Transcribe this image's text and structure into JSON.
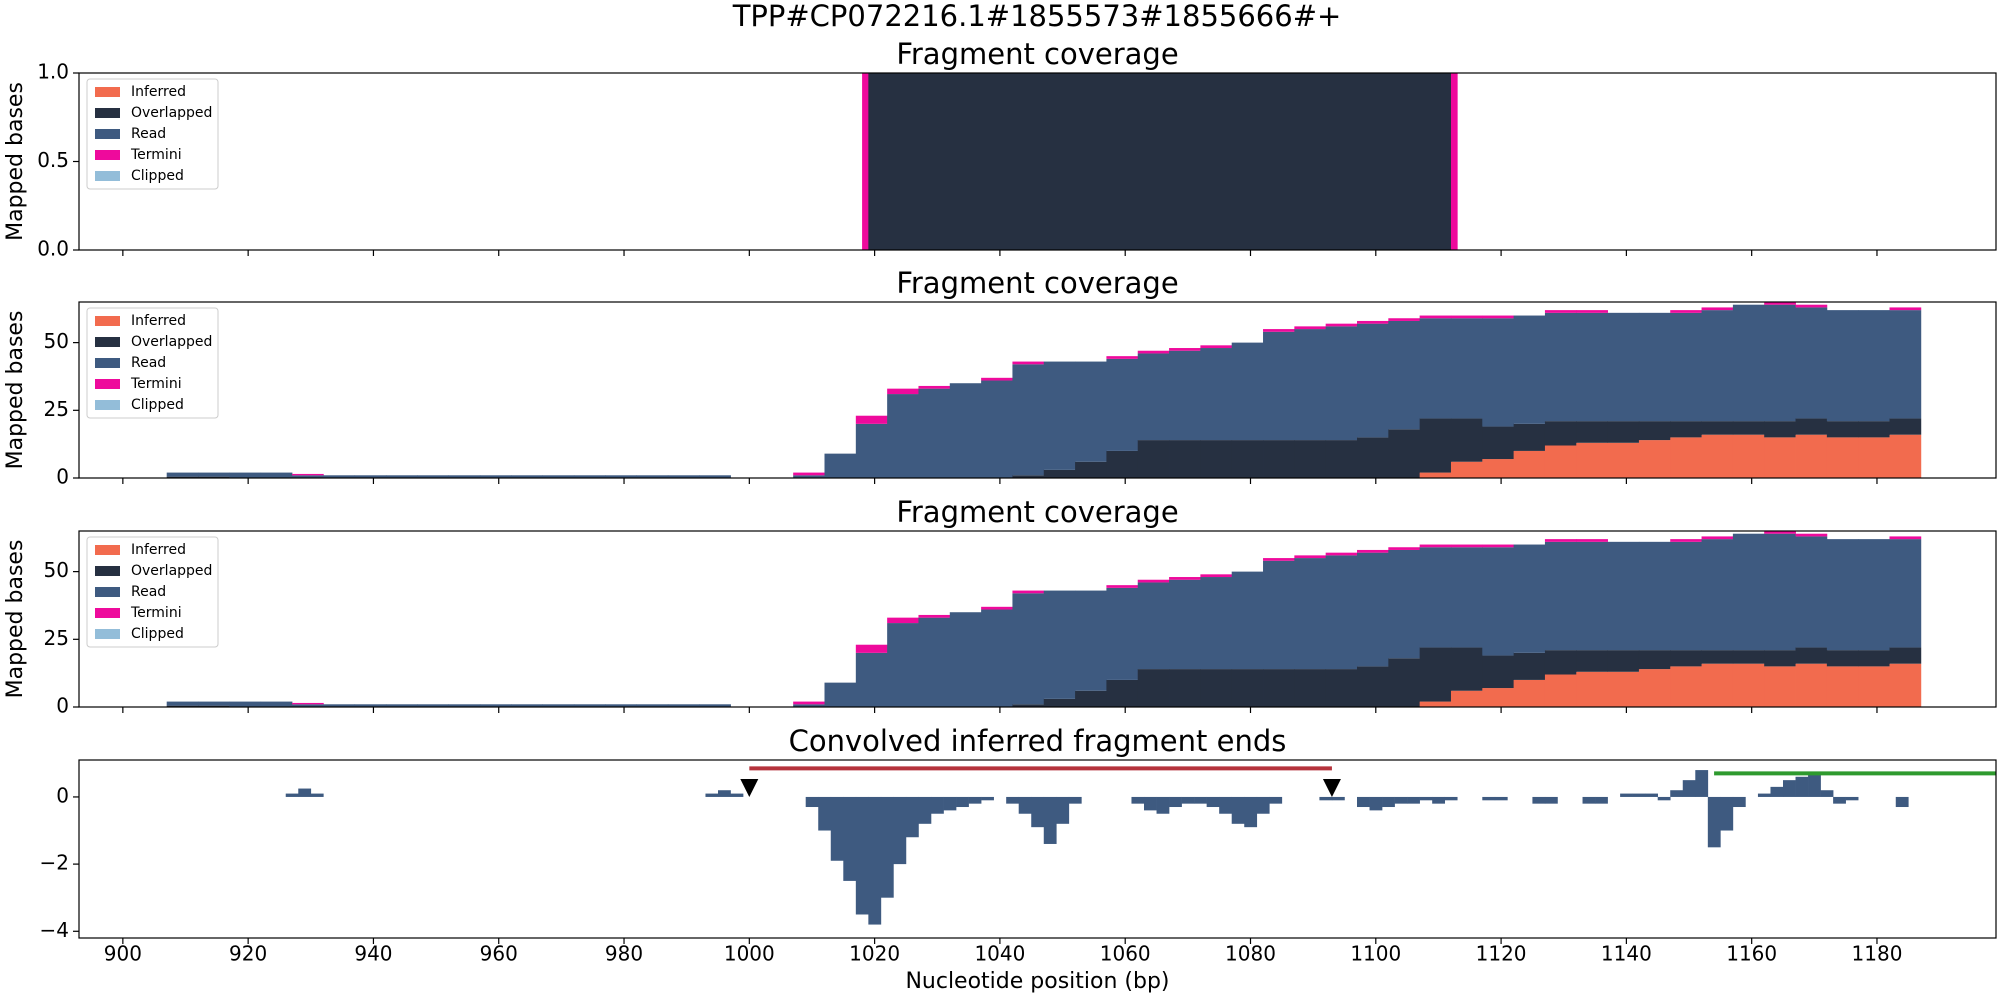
{
  "title": "TPP#CP072216.1#1855573#1855666#+",
  "chart_data": [
    {
      "type": "histogram",
      "stacked": true,
      "title": "Fragment coverage",
      "ylabel": "Mapped bases",
      "legend": "upper left",
      "xlim": [
        893,
        1199
      ],
      "ylim": [
        0,
        1
      ],
      "yticks": [
        {
          "value": 0,
          "label": "0.0"
        },
        {
          "value": 0.5,
          "label": "0.5"
        },
        {
          "value": 1,
          "label": "1.0"
        }
      ],
      "bins": [
        1018,
        1019,
        1112,
        1113
      ],
      "series": [
        {
          "name": "Inferred",
          "color": "#f26b4e",
          "values": [
            0,
            0,
            0
          ]
        },
        {
          "name": "Overlapped",
          "color": "#263041",
          "values": [
            0,
            1,
            0
          ]
        },
        {
          "name": "Read",
          "color": "#3e5a80",
          "values": [
            0,
            0,
            0
          ]
        },
        {
          "name": "Termini",
          "color": "#ee0a9c",
          "values": [
            1,
            0,
            1
          ]
        },
        {
          "name": "Clipped",
          "color": "#93bdd9",
          "values": [
            0,
            0,
            0
          ]
        }
      ]
    },
    {
      "type": "histogram",
      "stacked": true,
      "title": "Fragment coverage",
      "ylabel": "Mapped bases",
      "legend": "upper left",
      "xlim": [
        893,
        1199
      ],
      "ylim": [
        0,
        65
      ],
      "yticks": [
        0,
        25,
        50
      ],
      "bins": [
        907,
        912,
        917,
        922,
        927,
        932,
        937,
        942,
        947,
        952,
        957,
        962,
        967,
        972,
        977,
        982,
        987,
        992,
        997,
        1002,
        1007,
        1012,
        1017,
        1022,
        1027,
        1032,
        1037,
        1042,
        1047,
        1052,
        1057,
        1062,
        1067,
        1072,
        1077,
        1082,
        1087,
        1092,
        1097,
        1102,
        1107,
        1112,
        1117,
        1122,
        1127,
        1132,
        1137,
        1142,
        1147,
        1152,
        1157,
        1162,
        1167,
        1172,
        1177,
        1182,
        1187
      ],
      "series": [
        {
          "name": "Inferred",
          "color": "#f26b4e",
          "values": [
            0,
            0,
            0,
            0,
            0,
            0,
            0,
            0,
            0,
            0,
            0,
            0,
            0,
            0,
            0,
            0,
            0,
            0,
            0,
            0,
            0,
            0,
            0,
            0,
            0,
            0,
            0,
            0,
            0,
            0,
            0,
            0,
            0,
            0,
            0,
            0,
            0,
            0,
            0,
            0,
            2,
            6,
            7,
            10,
            12,
            13,
            13,
            14,
            15,
            16,
            16,
            15,
            16,
            15,
            15,
            16
          ]
        },
        {
          "name": "Overlapped",
          "color": "#263041",
          "values": [
            0.5,
            0.5,
            0,
            0,
            0,
            0,
            0,
            0,
            0,
            0,
            0,
            0,
            0,
            0,
            0,
            0,
            0,
            0,
            0,
            0,
            0,
            0,
            0,
            0,
            0,
            0,
            0,
            1,
            3,
            6,
            10,
            14,
            14,
            14,
            14,
            14,
            14,
            14,
            15,
            18,
            20,
            16,
            12,
            10,
            9,
            8,
            8,
            7,
            6,
            5,
            5,
            6,
            6,
            6,
            6,
            6
          ]
        },
        {
          "name": "Read",
          "color": "#3e5a80",
          "values": [
            1.5,
            1.5,
            2,
            2,
            1,
            1,
            1,
            1,
            1,
            1,
            1,
            1,
            1,
            1,
            1,
            1,
            1,
            1,
            0,
            0,
            1,
            9,
            20,
            31,
            33,
            35,
            36,
            41,
            40,
            37,
            34,
            32,
            33,
            34,
            36,
            40,
            41,
            42,
            42,
            40,
            37,
            37,
            40,
            40,
            40,
            40,
            40,
            40,
            40,
            41,
            43,
            43,
            41,
            41,
            41,
            40
          ]
        },
        {
          "name": "Termini",
          "color": "#ee0a9c",
          "values": [
            0,
            0,
            0,
            0,
            0.5,
            0,
            0,
            0,
            0,
            0,
            0,
            0,
            0,
            0,
            0,
            0,
            0,
            0,
            0,
            0,
            1,
            0,
            3,
            2,
            1,
            0,
            1,
            1,
            0,
            0,
            1,
            1,
            1,
            1,
            0,
            1,
            1,
            1,
            1,
            1,
            1,
            1,
            1,
            0,
            1,
            1,
            0,
            0,
            1,
            1,
            0,
            1,
            1,
            0,
            0,
            1
          ]
        },
        {
          "name": "Clipped",
          "color": "#93bdd9",
          "values": [
            0,
            0,
            0,
            0,
            0,
            0,
            0,
            0,
            0,
            0,
            0,
            0,
            0,
            0,
            0,
            0,
            0,
            0,
            0,
            0,
            0,
            0,
            0,
            0,
            0,
            0,
            0,
            0,
            0,
            0,
            0,
            0,
            0,
            0,
            0,
            0,
            0,
            0,
            0,
            0,
            0,
            0,
            0,
            0,
            0,
            0,
            0,
            0,
            0,
            0,
            0,
            0,
            0,
            0,
            0,
            0
          ]
        }
      ]
    },
    {
      "type": "histogram",
      "stacked": true,
      "title": "Fragment coverage",
      "ylabel": "Mapped bases",
      "legend": "upper left",
      "xlim": [
        893,
        1199
      ],
      "ylim": [
        0,
        65
      ],
      "yticks": [
        0,
        25,
        50
      ],
      "bins": [
        907,
        912,
        917,
        922,
        927,
        932,
        937,
        942,
        947,
        952,
        957,
        962,
        967,
        972,
        977,
        982,
        987,
        992,
        997,
        1002,
        1007,
        1012,
        1017,
        1022,
        1027,
        1032,
        1037,
        1042,
        1047,
        1052,
        1057,
        1062,
        1067,
        1072,
        1077,
        1082,
        1087,
        1092,
        1097,
        1102,
        1107,
        1112,
        1117,
        1122,
        1127,
        1132,
        1137,
        1142,
        1147,
        1152,
        1157,
        1162,
        1167,
        1172,
        1177,
        1182,
        1187
      ],
      "series": [
        {
          "name": "Inferred",
          "color": "#f26b4e",
          "values": [
            0,
            0,
            0,
            0,
            0,
            0,
            0,
            0,
            0,
            0,
            0,
            0,
            0,
            0,
            0,
            0,
            0,
            0,
            0,
            0,
            0,
            0,
            0,
            0,
            0,
            0,
            0,
            0,
            0,
            0,
            0,
            0,
            0,
            0,
            0,
            0,
            0,
            0,
            0,
            0,
            2,
            6,
            7,
            10,
            12,
            13,
            13,
            14,
            15,
            16,
            16,
            15,
            16,
            15,
            15,
            16
          ]
        },
        {
          "name": "Overlapped",
          "color": "#263041",
          "values": [
            0.5,
            0.5,
            0,
            0,
            0,
            0,
            0,
            0,
            0,
            0,
            0,
            0,
            0,
            0,
            0,
            0,
            0,
            0,
            0,
            0,
            0,
            0,
            0,
            0,
            0,
            0,
            0,
            1,
            3,
            6,
            10,
            14,
            14,
            14,
            14,
            14,
            14,
            14,
            15,
            18,
            20,
            16,
            12,
            10,
            9,
            8,
            8,
            7,
            6,
            5,
            5,
            6,
            6,
            6,
            6,
            6
          ]
        },
        {
          "name": "Read",
          "color": "#3e5a80",
          "values": [
            1.5,
            1.5,
            2,
            2,
            1,
            1,
            1,
            1,
            1,
            1,
            1,
            1,
            1,
            1,
            1,
            1,
            1,
            1,
            0,
            0,
            1,
            9,
            20,
            31,
            33,
            35,
            36,
            41,
            40,
            37,
            34,
            32,
            33,
            34,
            36,
            40,
            41,
            42,
            42,
            40,
            37,
            37,
            40,
            40,
            40,
            40,
            40,
            40,
            40,
            41,
            43,
            43,
            41,
            41,
            41,
            40
          ]
        },
        {
          "name": "Termini",
          "color": "#ee0a9c",
          "values": [
            0,
            0,
            0,
            0,
            0.5,
            0,
            0,
            0,
            0,
            0,
            0,
            0,
            0,
            0,
            0,
            0,
            0,
            0,
            0,
            0,
            1,
            0,
            3,
            2,
            1,
            0,
            1,
            1,
            0,
            0,
            1,
            1,
            1,
            1,
            0,
            1,
            1,
            1,
            1,
            1,
            1,
            1,
            1,
            0,
            1,
            1,
            0,
            0,
            1,
            1,
            0,
            1,
            1,
            0,
            0,
            1
          ]
        },
        {
          "name": "Clipped",
          "color": "#93bdd9",
          "values": [
            0,
            0,
            0,
            0,
            0,
            0,
            0,
            0,
            0,
            0,
            0,
            0,
            0,
            0,
            0,
            0,
            0,
            0,
            0,
            0,
            0,
            0,
            0,
            0,
            0,
            0,
            0,
            0,
            0,
            0,
            0,
            0,
            0,
            0,
            0,
            0,
            0,
            0,
            0,
            0,
            0,
            0,
            0,
            0,
            0,
            0,
            0,
            0,
            0,
            0,
            0,
            0,
            0,
            0,
            0,
            0
          ]
        }
      ]
    },
    {
      "type": "bar",
      "title": "Convolved inferred fragment ends",
      "xlabel": "Nucleotide position (bp)",
      "color": "#3e5a80",
      "xlim": [
        893,
        1199
      ],
      "ylim": [
        -4.2,
        1.1
      ],
      "xticks": [
        900,
        920,
        940,
        960,
        980,
        1000,
        1020,
        1040,
        1060,
        1080,
        1100,
        1120,
        1140,
        1160,
        1180
      ],
      "yticks": [
        {
          "value": -4,
          "label": "−4"
        },
        {
          "value": -2,
          "label": "−2"
        },
        0
      ],
      "x": [
        927,
        929,
        931,
        994,
        996,
        998,
        1010,
        1012,
        1014,
        1016,
        1018,
        1020,
        1022,
        1024,
        1026,
        1028,
        1030,
        1032,
        1034,
        1036,
        1038,
        1042,
        1044,
        1046,
        1048,
        1050,
        1052,
        1062,
        1064,
        1066,
        1068,
        1070,
        1072,
        1074,
        1076,
        1078,
        1080,
        1082,
        1084,
        1092,
        1094,
        1098,
        1100,
        1102,
        1104,
        1106,
        1108,
        1110,
        1112,
        1118,
        1120,
        1126,
        1128,
        1134,
        1136,
        1140,
        1142,
        1144,
        1146,
        1148,
        1150,
        1152,
        1154,
        1156,
        1158,
        1162,
        1164,
        1166,
        1168,
        1170,
        1172,
        1174,
        1176,
        1184
      ],
      "values": [
        0.1,
        0.25,
        0.1,
        0.1,
        0.2,
        0.1,
        -0.3,
        -1.0,
        -1.9,
        -2.5,
        -3.5,
        -3.8,
        -3.0,
        -2.0,
        -1.2,
        -0.8,
        -0.5,
        -0.4,
        -0.3,
        -0.2,
        -0.1,
        -0.2,
        -0.5,
        -0.9,
        -1.4,
        -0.8,
        -0.2,
        -0.2,
        -0.4,
        -0.5,
        -0.3,
        -0.2,
        -0.2,
        -0.3,
        -0.5,
        -0.8,
        -0.9,
        -0.5,
        -0.2,
        -0.1,
        -0.1,
        -0.3,
        -0.4,
        -0.3,
        -0.2,
        -0.2,
        -0.1,
        -0.2,
        -0.1,
        -0.1,
        -0.1,
        -0.2,
        -0.2,
        -0.2,
        -0.2,
        0.1,
        0.1,
        0.1,
        -0.1,
        0.2,
        0.5,
        0.8,
        -1.5,
        -1.0,
        -0.3,
        0.1,
        0.3,
        0.5,
        0.6,
        0.7,
        0.2,
        -0.2,
        -0.1,
        -0.3
      ],
      "markers_x": [
        1000,
        1093
      ],
      "spans": [
        {
          "x": [
            1000,
            1093
          ],
          "y": 0.85,
          "color": "#b5333c"
        },
        {
          "x": [
            1154,
            1199
          ],
          "y": 0.7,
          "color": "#2e9a2e"
        }
      ]
    }
  ]
}
